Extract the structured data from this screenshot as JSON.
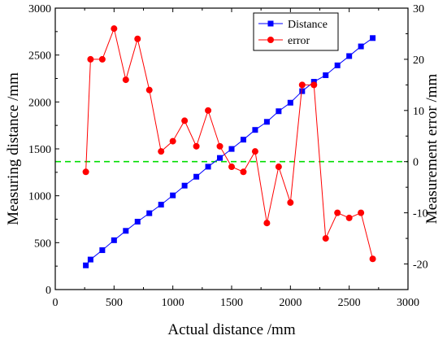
{
  "chart_data": {
    "type": "line",
    "title": "",
    "xlabel": "Actual distance /mm",
    "ylabel_left": "Measuring distance /mm",
    "ylabel_right": "Measurement error /mm",
    "xlim": [
      0,
      3000
    ],
    "ylim_left": [
      0,
      3000
    ],
    "ylim_right": [
      -25,
      30
    ],
    "x_ticks": [
      0,
      500,
      1000,
      1500,
      2000,
      2500,
      3000
    ],
    "y_left_ticks": [
      0,
      500,
      1000,
      1500,
      2000,
      2500,
      3000
    ],
    "y_right_ticks": [
      -20,
      -10,
      0,
      10,
      20,
      30
    ],
    "grid": false,
    "legend_position": "top-right-inside",
    "series": [
      {
        "name": "Distance",
        "axis": "left",
        "marker": "square",
        "color": "#0000ff",
        "x": [
          260,
          300,
          400,
          500,
          600,
          700,
          800,
          900,
          1000,
          1100,
          1200,
          1300,
          1400,
          1500,
          1600,
          1700,
          1800,
          1900,
          2000,
          2100,
          2200,
          2300,
          2400,
          2500,
          2600,
          2700
        ],
        "y": [
          258,
          320,
          420,
          526,
          626,
          724,
          814,
          905,
          1004,
          1108,
          1203,
          1310,
          1403,
          1499,
          1598,
          1702,
          1788,
          1901,
          1992,
          2115,
          2215,
          2285,
          2390,
          2489,
          2592,
          2681
        ]
      },
      {
        "name": "error",
        "axis": "right",
        "marker": "circle",
        "color": "#ff0000",
        "x": [
          260,
          300,
          400,
          500,
          600,
          700,
          800,
          900,
          1000,
          1100,
          1200,
          1300,
          1400,
          1500,
          1600,
          1700,
          1800,
          1900,
          2000,
          2100,
          2200,
          2300,
          2400,
          2500,
          2600,
          2700
        ],
        "y": [
          -2,
          20,
          20,
          26,
          16,
          24,
          14,
          2,
          4,
          8,
          3,
          10,
          3,
          -1,
          -2,
          2,
          -12,
          -1,
          -8,
          15,
          15,
          -15,
          -10,
          -11,
          -10,
          -19
        ]
      }
    ],
    "reference_line": {
      "axis": "right",
      "y": 0,
      "style": "dashed",
      "color": "#00dd00"
    }
  }
}
